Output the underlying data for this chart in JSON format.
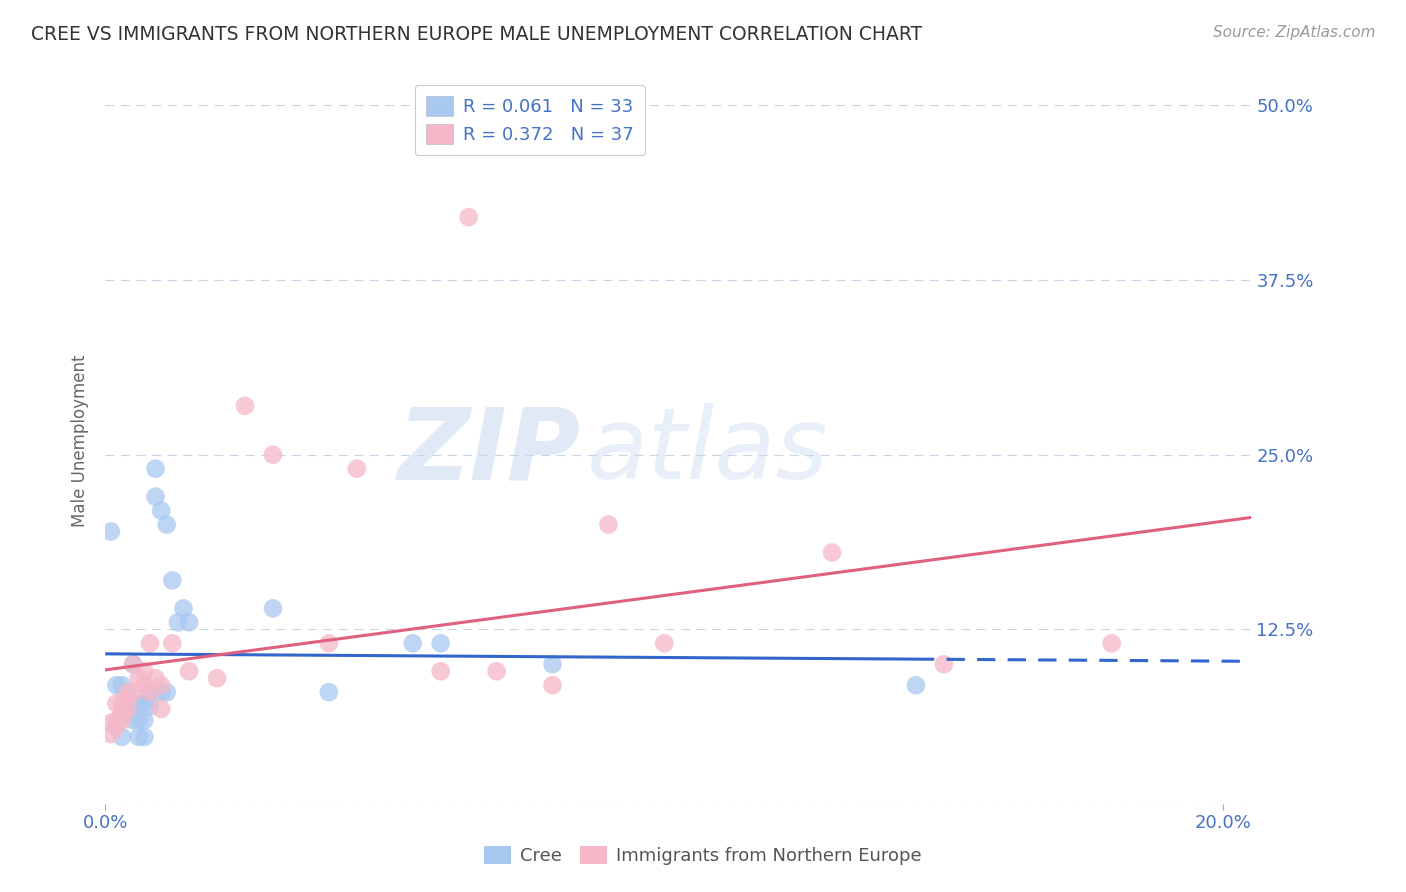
{
  "title": "CREE VS IMMIGRANTS FROM NORTHERN EUROPE MALE UNEMPLOYMENT CORRELATION CHART",
  "source": "Source: ZipAtlas.com",
  "ylabel": "Male Unemployment",
  "cree_color": "#a8c8f0",
  "immigrant_color": "#f5b8c8",
  "cree_line_color": "#3366cc",
  "immigrant_line_color": "#e06080",
  "watermark_zip": "ZIP",
  "watermark_atlas": "atlas",
  "background_color": "#ffffff",
  "grid_color": "#c8d4e8",
  "legend_cree_color": "#a8c8f0",
  "legend_imm_color": "#f5b8c8",
  "legend_text_color": "#4472c4",
  "right_label_color": "#4472c4",
  "bottom_label_color": "#4472c4",
  "cree_scatter": [
    [
      0.001,
      0.195
    ],
    [
      0.002,
      0.085
    ],
    [
      0.003,
      0.085
    ],
    [
      0.003,
      0.048
    ],
    [
      0.004,
      0.08
    ],
    [
      0.004,
      0.07
    ],
    [
      0.005,
      0.1
    ],
    [
      0.005,
      0.072
    ],
    [
      0.005,
      0.06
    ],
    [
      0.006,
      0.072
    ],
    [
      0.006,
      0.06
    ],
    [
      0.006,
      0.048
    ],
    [
      0.007,
      0.072
    ],
    [
      0.007,
      0.06
    ],
    [
      0.007,
      0.048
    ],
    [
      0.008,
      0.08
    ],
    [
      0.008,
      0.07
    ],
    [
      0.009,
      0.24
    ],
    [
      0.009,
      0.22
    ],
    [
      0.01,
      0.21
    ],
    [
      0.01,
      0.08
    ],
    [
      0.011,
      0.2
    ],
    [
      0.011,
      0.08
    ],
    [
      0.012,
      0.16
    ],
    [
      0.013,
      0.13
    ],
    [
      0.014,
      0.14
    ],
    [
      0.015,
      0.13
    ],
    [
      0.03,
      0.14
    ],
    [
      0.04,
      0.08
    ],
    [
      0.055,
      0.115
    ],
    [
      0.06,
      0.115
    ],
    [
      0.08,
      0.1
    ],
    [
      0.145,
      0.085
    ]
  ],
  "immigrant_scatter": [
    [
      0.001,
      0.058
    ],
    [
      0.001,
      0.05
    ],
    [
      0.002,
      0.072
    ],
    [
      0.002,
      0.06
    ],
    [
      0.002,
      0.055
    ],
    [
      0.003,
      0.072
    ],
    [
      0.003,
      0.065
    ],
    [
      0.003,
      0.06
    ],
    [
      0.004,
      0.08
    ],
    [
      0.004,
      0.075
    ],
    [
      0.004,
      0.068
    ],
    [
      0.005,
      0.1
    ],
    [
      0.005,
      0.08
    ],
    [
      0.006,
      0.09
    ],
    [
      0.007,
      0.095
    ],
    [
      0.007,
      0.085
    ],
    [
      0.008,
      0.115
    ],
    [
      0.008,
      0.08
    ],
    [
      0.009,
      0.09
    ],
    [
      0.01,
      0.085
    ],
    [
      0.01,
      0.068
    ],
    [
      0.012,
      0.115
    ],
    [
      0.015,
      0.095
    ],
    [
      0.02,
      0.09
    ],
    [
      0.025,
      0.285
    ],
    [
      0.03,
      0.25
    ],
    [
      0.04,
      0.115
    ],
    [
      0.045,
      0.24
    ],
    [
      0.06,
      0.095
    ],
    [
      0.065,
      0.42
    ],
    [
      0.07,
      0.095
    ],
    [
      0.08,
      0.085
    ],
    [
      0.09,
      0.2
    ],
    [
      0.1,
      0.115
    ],
    [
      0.13,
      0.18
    ],
    [
      0.15,
      0.1
    ],
    [
      0.18,
      0.115
    ]
  ],
  "xlim": [
    0.0,
    0.205
  ],
  "ylim": [
    0.0,
    0.52
  ],
  "yticks": [
    0.0,
    0.125,
    0.25,
    0.375,
    0.5
  ],
  "ytick_labels": [
    "",
    "12.5%",
    "25.0%",
    "37.5%",
    "50.0%"
  ],
  "xticks": [
    0.0,
    0.2
  ],
  "xtick_labels": [
    "0.0%",
    "20.0%"
  ],
  "cree_line_dashed_start": 0.145,
  "cree_line_end": 0.205,
  "imm_line_end": 0.205
}
